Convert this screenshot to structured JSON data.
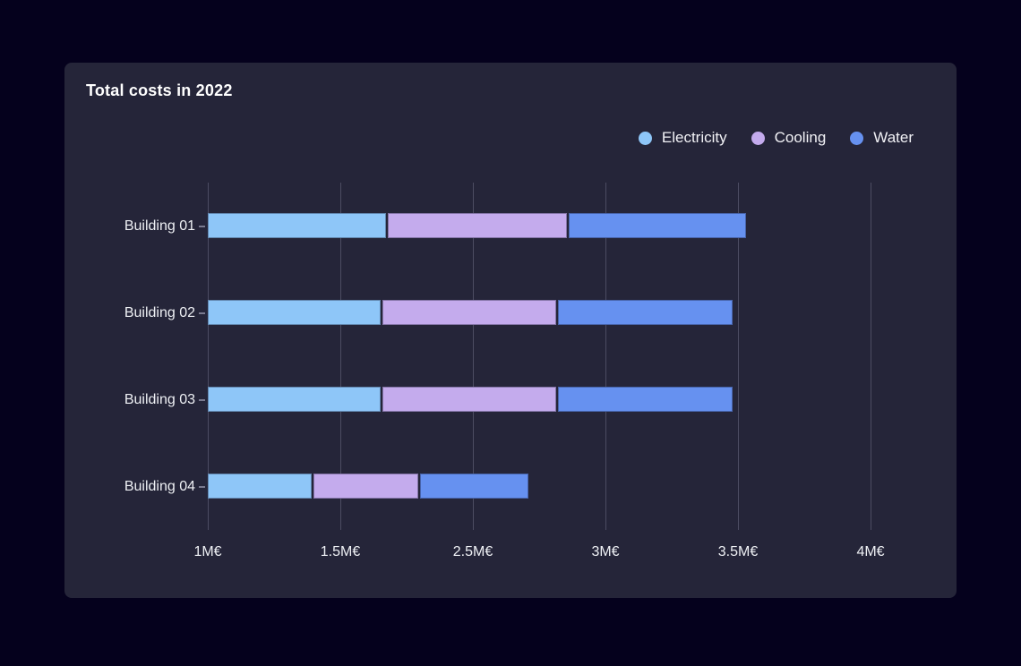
{
  "card": {
    "title": "Total costs in 2022"
  },
  "chart_data": {
    "type": "bar",
    "orientation": "horizontal",
    "stacked": true,
    "title": "Total costs in 2022",
    "unit": "M€",
    "categories": [
      "Building 01",
      "Building 02",
      "Building 03",
      "Building 04"
    ],
    "series": [
      {
        "name": "Electricity",
        "color": "#8ec6f8",
        "values": [
          0.68,
          0.66,
          0.66,
          0.4
        ]
      },
      {
        "name": "Cooling",
        "color": "#c4abed",
        "values": [
          0.68,
          0.66,
          0.66,
          0.4
        ]
      },
      {
        "name": "Water",
        "color": "#6691f0",
        "values": [
          0.67,
          0.66,
          0.66,
          0.41
        ]
      }
    ],
    "x_tick_labels": [
      "1M€",
      "1.5M€",
      "2.5M€",
      "3M€",
      "3.5M€",
      "4M€"
    ],
    "x_tick_step_m": 0.5,
    "axis_start_label": "1M€",
    "legend_position": "top-right",
    "grid": "vertical-only",
    "legend_entries": [
      "Electricity",
      "Cooling",
      "Water"
    ]
  },
  "colors": {
    "page_background": "#05011d",
    "card_background": "#252539",
    "gridline": "#4c4c62",
    "text": "#f2f2f6",
    "electricity": "#8ec6f8",
    "cooling": "#c4abed",
    "water": "#6691f0"
  }
}
